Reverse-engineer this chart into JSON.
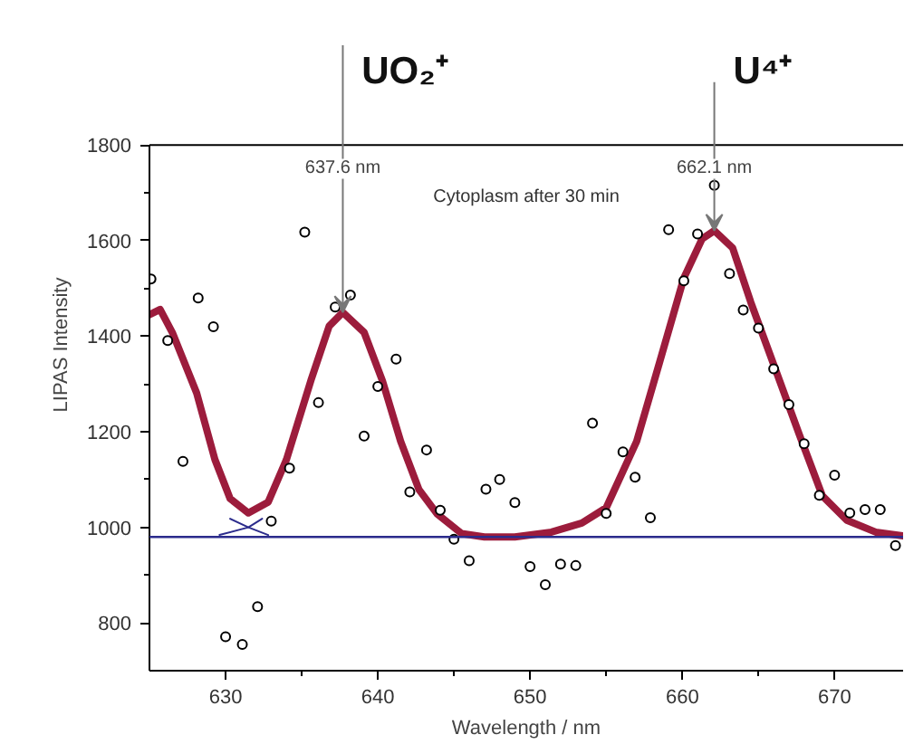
{
  "chart_data": {
    "type": "scatter",
    "xlabel": "Wavelength / nm",
    "ylabel": "LIPAS Intensity",
    "xlim": [
      625,
      674.5
    ],
    "ylim": [
      700,
      1800
    ],
    "xticks": [
      630,
      640,
      650,
      660,
      670
    ],
    "yticks": [
      800,
      1000,
      1200,
      1400,
      1600,
      1800
    ],
    "grid": false,
    "marker": "circle",
    "series": [
      {
        "color": "#000000",
        "x": [
          625.1,
          626.2,
          627.2,
          628.2,
          629.2,
          630.0,
          631.1,
          632.1,
          633.0,
          634.2,
          635.2,
          636.1,
          637.2,
          638.2,
          639.1,
          640.0,
          641.2,
          642.1,
          643.2,
          644.1,
          645.0,
          646.0,
          647.1,
          648.0,
          649.0,
          650.0,
          651.0,
          652.0,
          653.0,
          654.1,
          655.0,
          656.1,
          656.9,
          657.9,
          659.1,
          660.1,
          661.0,
          662.1,
          663.1,
          664.0,
          665.0,
          666.0,
          667.0,
          668.0,
          669.0,
          670.0,
          671.0,
          672.0,
          673.0,
          674.0
        ],
        "values": [
          1520,
          1391,
          1138,
          1480,
          1420,
          771,
          755,
          834,
          1013,
          1124,
          1618,
          1261,
          1461,
          1486,
          1191,
          1295,
          1352,
          1074,
          1162,
          1036,
          975,
          930,
          1080,
          1100,
          1052,
          918,
          880,
          923,
          920,
          1218,
          1029,
          1158,
          1105,
          1020,
          1623,
          1516,
          1614,
          1716,
          1531,
          1455,
          1417,
          1332,
          1257,
          1175,
          1067,
          1109,
          1030,
          1037,
          1037,
          962
        ]
      },
      {
        "type": "line",
        "marker": "none",
        "color": "#9c1c3c",
        "x": [
          625.0,
          625.7,
          626.5,
          628.1,
          629.3,
          630.3,
          631.5,
          632.8,
          634.0,
          635.6,
          636.8,
          637.7,
          639.1,
          640.3,
          641.5,
          642.7,
          643.9,
          645.5,
          647.0,
          649.0,
          651.4,
          653.4,
          655.0,
          657.0,
          658.5,
          660.1,
          661.3,
          662.1,
          663.3,
          664.5,
          666.1,
          667.7,
          669.2,
          670.8,
          672.7,
          674.5
        ],
        "values": [
          1445,
          1456,
          1408,
          1281,
          1142,
          1060,
          1030,
          1053,
          1142,
          1307,
          1421,
          1450,
          1408,
          1307,
          1180,
          1079,
          1028,
          987,
          980,
          980,
          990,
          1009,
          1041,
          1180,
          1345,
          1522,
          1604,
          1621,
          1585,
          1471,
          1332,
          1193,
          1066,
          1015,
          990,
          982
        ]
      },
      {
        "type": "line",
        "marker": "none",
        "color": "#2b2b8c",
        "x": [
          630.3,
          631.5,
          632.8
        ],
        "values": [
          1018,
          1000,
          984
        ]
      },
      {
        "type": "line",
        "marker": "none",
        "color": "#2b2b8c",
        "x": [
          629.6,
          631.5,
          632.4
        ],
        "values": [
          984,
          1000,
          1018
        ]
      }
    ],
    "ref_lines": [
      {
        "axis": "y",
        "value": 980,
        "color": "#2b2b8c"
      }
    ],
    "annotations": [
      {
        "text": "UO₂⁺",
        "x": 637.7,
        "y": 1450
      },
      {
        "text": "U⁴⁺",
        "x": 662.1,
        "y": 1621
      },
      "637.6 nm",
      "662.1 nm",
      "Cytoplasm after 30 min"
    ]
  }
}
